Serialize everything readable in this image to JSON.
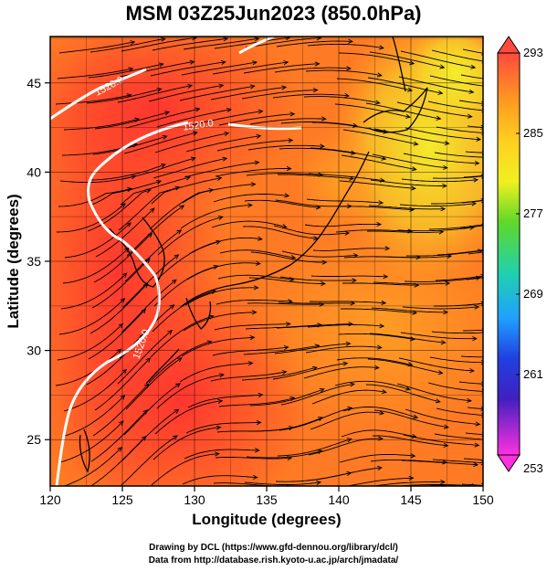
{
  "title": "MSM 03Z25Jun2023 (850.0hPa)",
  "map": {
    "xlabel": "Longitude (degrees)",
    "ylabel": "Latitude  (degrees)",
    "lon_range": [
      120,
      150
    ],
    "lat_range": [
      22.4,
      47.6
    ],
    "x_ticks": [
      "120",
      "125",
      "130",
      "135",
      "140",
      "145",
      "150"
    ],
    "y_ticks": [
      "25",
      "30",
      "35",
      "40",
      "45"
    ],
    "field": "temperature",
    "colorbar": {
      "min": 253,
      "max": 293,
      "labels": [
        "293",
        "285",
        "277",
        "269",
        "261",
        "253"
      ],
      "colors_top_to_bottom": [
        "#ff4a3d",
        "#ff8a1e",
        "#ffc020",
        "#ffff20",
        "#80e028",
        "#20c040",
        "#20e0c0",
        "#20a0ff",
        "#2040e0",
        "#3020c0",
        "#a020d0",
        "#ff30e0"
      ]
    },
    "contour_labels": [
      "1520.0",
      "1520.0",
      "1520.0"
    ],
    "colors": {
      "warm": "#ff3a30",
      "mid": "#ff8a20",
      "cool": "#e8ec28",
      "contour": "#ffffff",
      "streamline": "#000000"
    }
  },
  "credits": {
    "line1": "Drawing by DCL (https://www.gfd-dennou.org/library/dcl/)",
    "line2": "Data from http://database.rish.kyoto-u.ac.jp/arch/jmadata/"
  }
}
